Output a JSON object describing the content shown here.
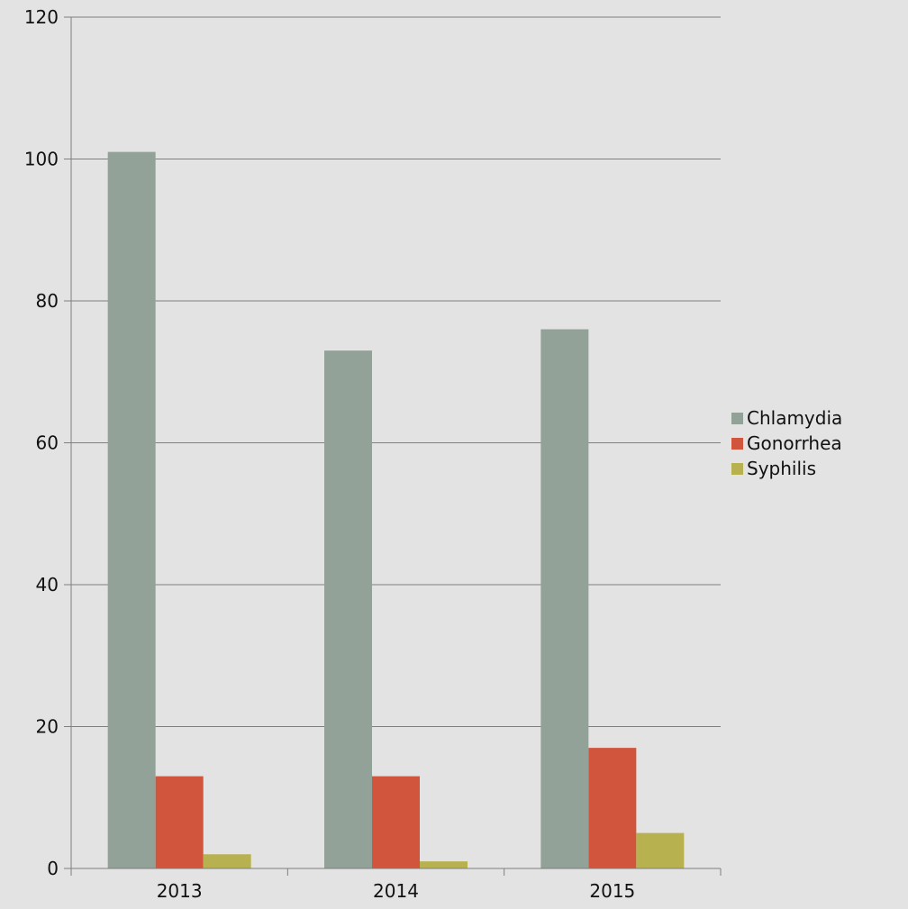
{
  "chart_data": {
    "type": "bar",
    "categories": [
      "2013",
      "2014",
      "2015"
    ],
    "series": [
      {
        "name": "Chlamydia",
        "color": "#93a298",
        "values": [
          101,
          73,
          76
        ]
      },
      {
        "name": "Gonorrhea",
        "color": "#d1553d",
        "values": [
          13,
          13,
          17
        ]
      },
      {
        "name": "Syphilis",
        "color": "#b8b14f",
        "values": [
          2,
          1,
          5
        ]
      }
    ],
    "title": "",
    "xlabel": "",
    "ylabel": "",
    "ylim": [
      0,
      120
    ],
    "yticks": [
      0,
      20,
      40,
      60,
      80,
      100,
      120
    ],
    "grid": true,
    "legend_position": "right"
  }
}
